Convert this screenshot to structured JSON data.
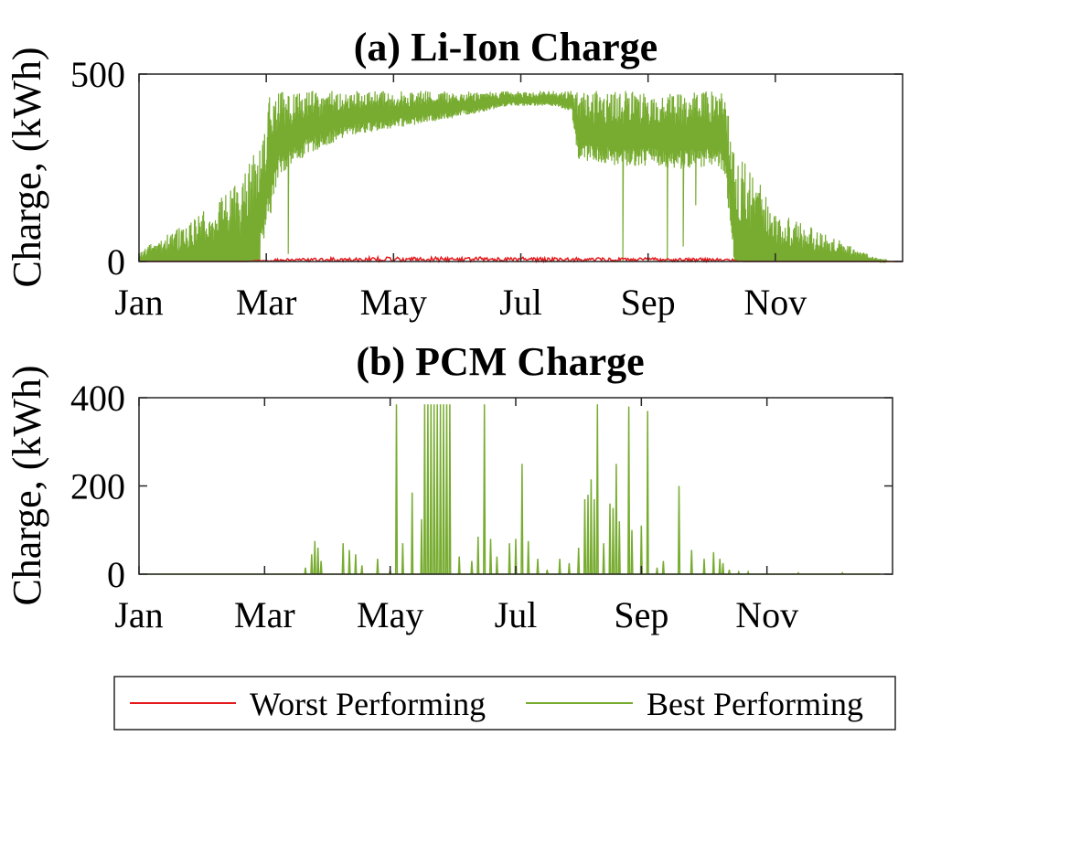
{
  "chart_data": [
    {
      "id": "li_ion",
      "type": "line",
      "title": "(a) Li-Ion Charge",
      "xlabel": "",
      "ylabel": "Charge, (kWh)",
      "x_unit": "month (0 = start of Jan, 12 = end of Dec)",
      "xlim": [
        0,
        12
      ],
      "ylim": [
        0,
        500
      ],
      "yticks": [
        0,
        500
      ],
      "xtick_labels": [
        "Jan",
        "Mar",
        "May",
        "Jul",
        "Sep",
        "Nov"
      ],
      "xtick_positions": [
        0,
        2,
        4,
        6,
        8,
        10
      ],
      "grid": false,
      "series": [
        {
          "name": "Best Performing",
          "color": "#77ac30",
          "upper_envelope": [
            [
              0.0,
              25
            ],
            [
              0.3,
              60
            ],
            [
              0.6,
              90
            ],
            [
              0.9,
              120
            ],
            [
              1.2,
              160
            ],
            [
              1.5,
              200
            ],
            [
              1.75,
              270
            ],
            [
              1.95,
              330
            ],
            [
              2.05,
              455
            ],
            [
              2.2,
              455
            ],
            [
              2.8,
              455
            ],
            [
              3.5,
              455
            ],
            [
              4.5,
              455
            ],
            [
              5.5,
              455
            ],
            [
              6.3,
              455
            ],
            [
              7.0,
              455
            ],
            [
              7.5,
              455
            ],
            [
              8.0,
              455
            ],
            [
              8.5,
              455
            ],
            [
              9.0,
              455
            ],
            [
              9.2,
              455
            ],
            [
              9.35,
              300
            ],
            [
              9.6,
              250
            ],
            [
              9.9,
              170
            ],
            [
              10.2,
              120
            ],
            [
              10.6,
              90
            ],
            [
              11.0,
              60
            ],
            [
              11.3,
              30
            ],
            [
              11.6,
              10
            ],
            [
              11.8,
              0
            ]
          ],
          "lower_envelope": [
            [
              0.0,
              0
            ],
            [
              1.9,
              0
            ],
            [
              2.05,
              110
            ],
            [
              2.2,
              230
            ],
            [
              2.7,
              290
            ],
            [
              3.3,
              335
            ],
            [
              4.0,
              355
            ],
            [
              4.7,
              375
            ],
            [
              5.3,
              395
            ],
            [
              5.8,
              415
            ],
            [
              6.5,
              415
            ],
            [
              6.8,
              400
            ],
            [
              6.9,
              270
            ],
            [
              7.5,
              255
            ],
            [
              8.0,
              255
            ],
            [
              8.5,
              245
            ],
            [
              9.0,
              255
            ],
            [
              9.2,
              240
            ],
            [
              9.35,
              0
            ],
            [
              12.0,
              0
            ]
          ],
          "notable_dips": [
            [
              2.35,
              20
            ],
            [
              7.6,
              0
            ],
            [
              8.3,
              0
            ],
            [
              8.55,
              40
            ],
            [
              8.75,
              150
            ]
          ]
        },
        {
          "name": "Worst Performing",
          "color": "#e41a1c",
          "upper_envelope": [
            [
              0.0,
              0
            ],
            [
              1.7,
              0
            ],
            [
              1.9,
              5
            ],
            [
              2.5,
              8
            ],
            [
              3.5,
              12
            ],
            [
              4.5,
              12
            ],
            [
              5.5,
              12
            ],
            [
              6.5,
              12
            ],
            [
              7.5,
              10
            ],
            [
              8.5,
              10
            ],
            [
              9.3,
              8
            ],
            [
              9.5,
              0
            ],
            [
              12.0,
              0
            ]
          ]
        }
      ]
    },
    {
      "id": "pcm",
      "type": "line",
      "title": "(b) PCM Charge",
      "xlabel": "",
      "ylabel": "Charge, (kWh)",
      "x_unit": "month (0 = start of Jan, 12 = end of Dec)",
      "xlim": [
        0,
        12
      ],
      "ylim": [
        0,
        400
      ],
      "yticks": [
        0,
        200,
        400
      ],
      "xtick_labels": [
        "Jan",
        "Mar",
        "May",
        "Jul",
        "Sep",
        "Nov"
      ],
      "xtick_positions": [
        0,
        2,
        4,
        6,
        8,
        10
      ],
      "grid": false,
      "series": [
        {
          "name": "Best Performing",
          "color": "#77ac30",
          "spikes": [
            [
              2.65,
              15
            ],
            [
              2.75,
              45
            ],
            [
              2.8,
              75
            ],
            [
              2.85,
              60
            ],
            [
              2.9,
              30
            ],
            [
              3.25,
              70
            ],
            [
              3.35,
              55
            ],
            [
              3.45,
              45
            ],
            [
              3.55,
              20
            ],
            [
              3.8,
              35
            ],
            [
              4.0,
              10
            ],
            [
              4.1,
              385
            ],
            [
              4.2,
              70
            ],
            [
              4.35,
              185
            ],
            [
              4.5,
              125
            ],
            [
              4.55,
              385
            ],
            [
              4.6,
              385
            ],
            [
              4.65,
              385
            ],
            [
              4.7,
              385
            ],
            [
              4.75,
              385
            ],
            [
              4.8,
              385
            ],
            [
              4.85,
              385
            ],
            [
              4.9,
              385
            ],
            [
              4.95,
              385
            ],
            [
              5.1,
              40
            ],
            [
              5.3,
              30
            ],
            [
              5.4,
              85
            ],
            [
              5.5,
              385
            ],
            [
              5.6,
              80
            ],
            [
              5.7,
              40
            ],
            [
              5.9,
              70
            ],
            [
              6.0,
              80
            ],
            [
              6.1,
              250
            ],
            [
              6.2,
              75
            ],
            [
              6.35,
              35
            ],
            [
              6.5,
              10
            ],
            [
              6.7,
              35
            ],
            [
              6.85,
              25
            ],
            [
              7.0,
              60
            ],
            [
              7.1,
              170
            ],
            [
              7.15,
              180
            ],
            [
              7.2,
              215
            ],
            [
              7.25,
              170
            ],
            [
              7.3,
              385
            ],
            [
              7.4,
              70
            ],
            [
              7.5,
              160
            ],
            [
              7.55,
              150
            ],
            [
              7.6,
              250
            ],
            [
              7.65,
              120
            ],
            [
              7.8,
              380
            ],
            [
              7.85,
              100
            ],
            [
              8.0,
              110
            ],
            [
              8.1,
              370
            ],
            [
              8.25,
              15
            ],
            [
              8.35,
              30
            ],
            [
              8.6,
              200
            ],
            [
              8.8,
              55
            ],
            [
              9.0,
              35
            ],
            [
              9.15,
              50
            ],
            [
              9.25,
              35
            ],
            [
              9.3,
              25
            ],
            [
              9.4,
              10
            ],
            [
              9.55,
              5
            ],
            [
              9.7,
              5
            ],
            [
              10.5,
              3
            ],
            [
              11.2,
              3
            ]
          ]
        }
      ]
    }
  ],
  "legend": {
    "placement": "bottom-center",
    "entries": [
      {
        "label": "Worst Performing",
        "color": "#e41a1c"
      },
      {
        "label": "Best Performing",
        "color": "#77ac30"
      }
    ]
  }
}
